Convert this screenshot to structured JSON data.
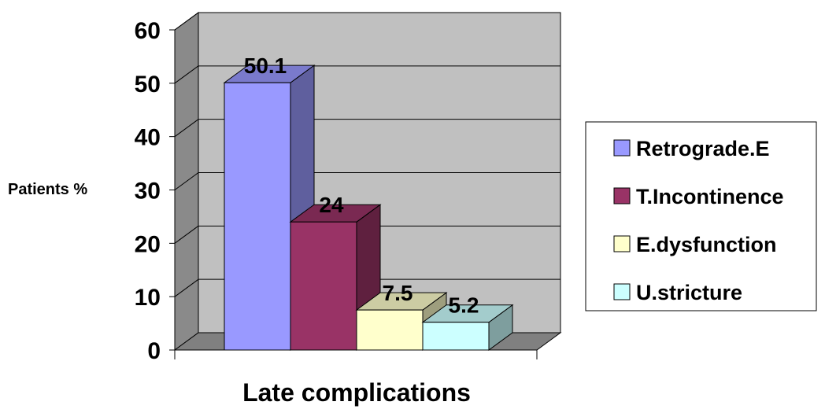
{
  "chart_data": {
    "type": "bar",
    "three_d": true,
    "categories": [
      "Retrograde.E",
      "T.Incontinence",
      "E.dysfunction",
      "U.stricture"
    ],
    "values": [
      50.1,
      24,
      7.5,
      5.2
    ],
    "data_labels": [
      "50.1",
      "24",
      "7.5",
      "5.2"
    ],
    "series": [
      {
        "name": "Retrograde.E",
        "value": 50.1,
        "color": "#9999FF"
      },
      {
        "name": "T.Incontinence",
        "value": 24,
        "color": "#993366"
      },
      {
        "name": "E.dysfunction",
        "value": 7.5,
        "color": "#FFFFCC"
      },
      {
        "name": "U.stricture",
        "value": 5.2,
        "color": "#CCFFFF"
      }
    ],
    "title": "",
    "xlabel": "Late complications",
    "ylabel": "Patients %",
    "ylim": [
      0,
      60
    ],
    "yticks": [
      "0",
      "10",
      "20",
      "30",
      "40",
      "50",
      "60"
    ],
    "grid": true,
    "legend_position": "right",
    "wall_color": "#C0C0C0",
    "floor_color": "#808080"
  }
}
